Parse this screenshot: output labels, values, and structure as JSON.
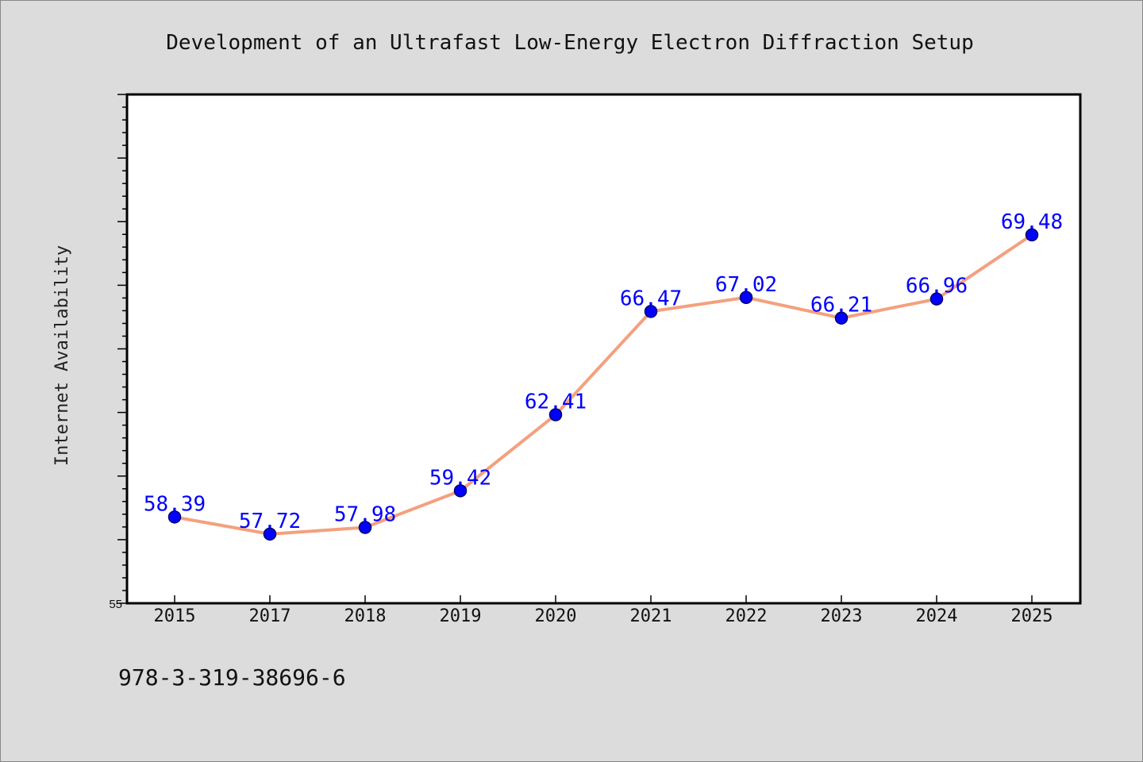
{
  "chart_data": {
    "type": "line",
    "title": "Development of an Ultrafast Low-Energy Electron Diffraction Setup",
    "xlabel": "",
    "ylabel": "Internet Availability",
    "categories": [
      "2015",
      "2017",
      "2018",
      "2019",
      "2020",
      "2021",
      "2022",
      "2023",
      "2024",
      "2025"
    ],
    "series": [
      {
        "values": [
          58.39,
          57.72,
          57.98,
          59.42,
          62.41,
          66.47,
          67.02,
          66.21,
          66.96,
          69.48
        ]
      }
    ],
    "data_labels": [
      "58.39",
      "57.72",
      "57.98",
      "59.42",
      "62.41",
      "66.47",
      "67.02",
      "66.21",
      "66.96",
      "69.48"
    ],
    "ylim": [
      55,
      75
    ],
    "y_tick_labels": [
      "55"
    ],
    "grid": false,
    "legend": "none",
    "colors": {
      "line": "#f4a07e",
      "marker": "#0000ff",
      "marker_edge": "#000066",
      "data_label": "#0000ff",
      "plot_background": "#ffffff",
      "figure_background": "#dcdcdc"
    }
  },
  "footnote": "978-3-319-38696-6"
}
